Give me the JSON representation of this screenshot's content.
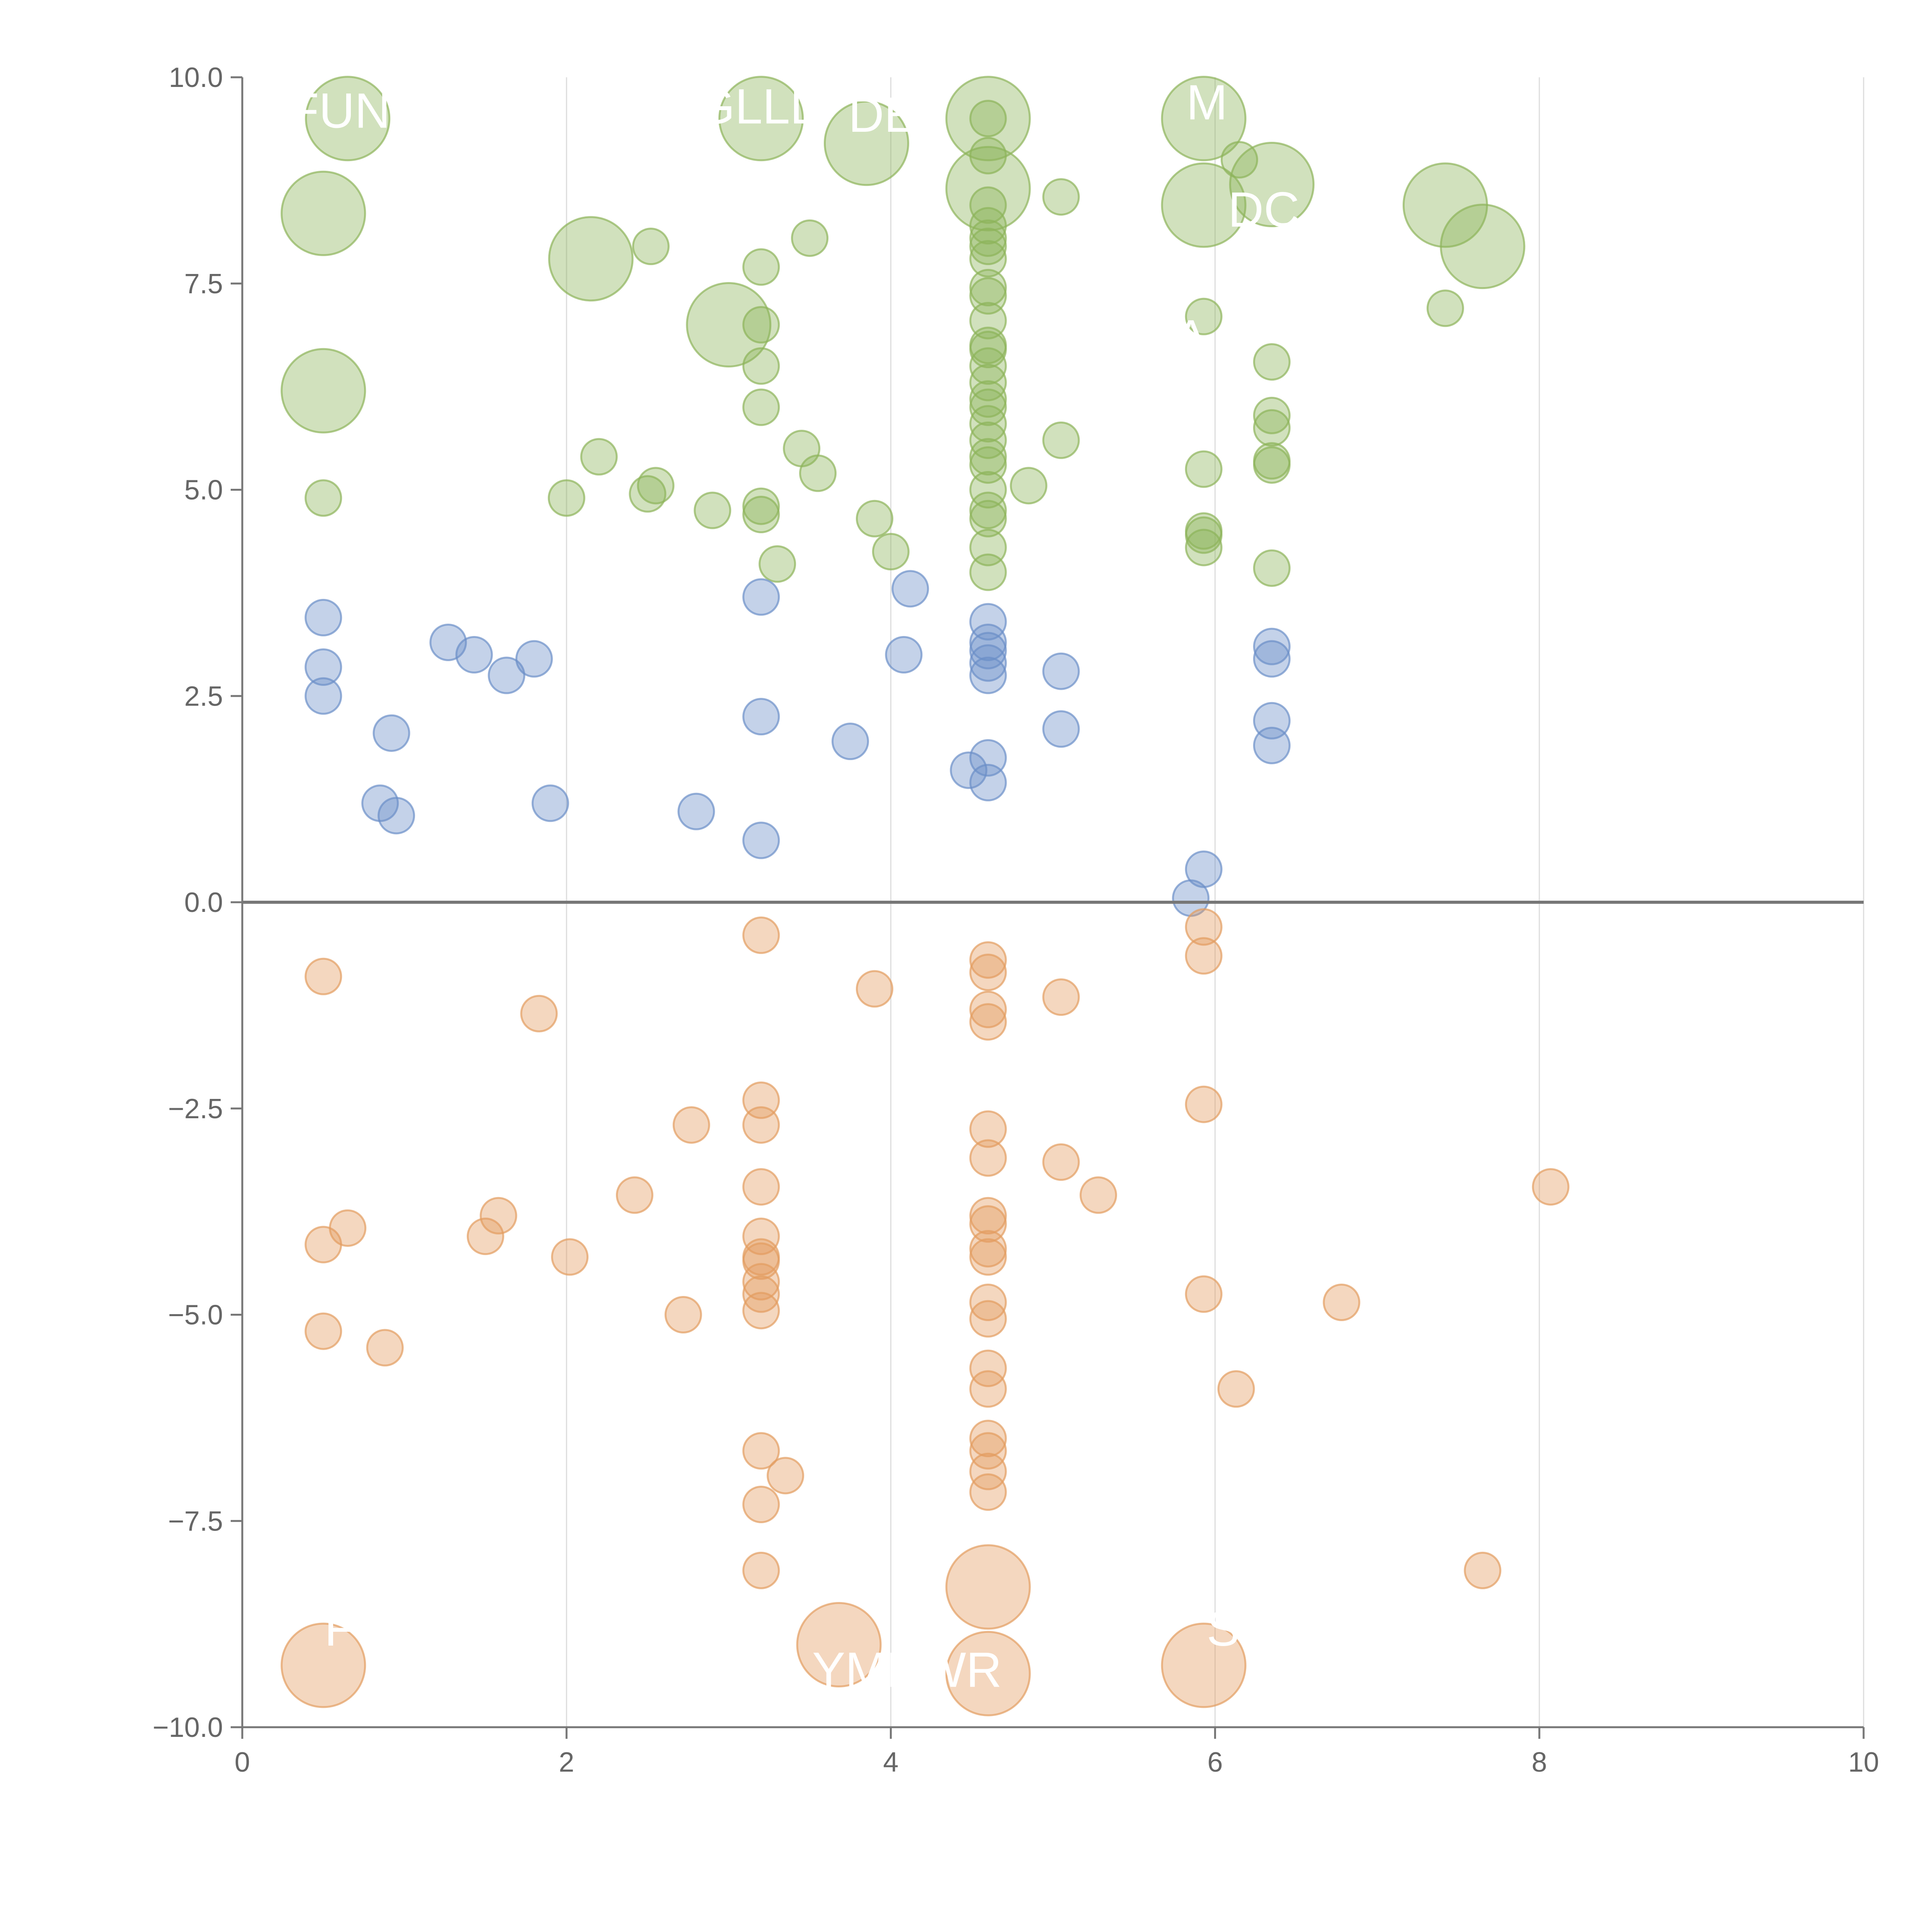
{
  "chart_data": {
    "type": "scatter",
    "title": "",
    "xlabel": "",
    "ylabel": "",
    "xlim": [
      0,
      10
    ],
    "ylim": [
      -10,
      10
    ],
    "x_ticks": [
      0,
      2,
      4,
      6,
      8,
      10
    ],
    "y_ticks": [
      -10,
      -7.5,
      -5,
      -2.5,
      0,
      2.5,
      5,
      7.5,
      10
    ],
    "x_tick_labels": [
      "0",
      "2",
      "4",
      "6",
      "8",
      "10"
    ],
    "y_tick_labels": [
      "−10.0",
      "−7.5",
      "−5.0",
      "−2.5",
      "0.0",
      "2.5",
      "5.0",
      "7.5",
      "10.0"
    ],
    "grid": "vertical",
    "zero_line": true,
    "legend": "none",
    "series": [
      {
        "name": "green",
        "color": "#8db45a",
        "points": [
          {
            "x": 0.5,
            "y": 4.9,
            "size": "small"
          },
          {
            "x": 0.5,
            "y": 6.2,
            "size": "large"
          },
          {
            "x": 0.5,
            "y": 8.35,
            "size": "large"
          },
          {
            "x": 0.65,
            "y": 9.5,
            "size": "large"
          },
          {
            "x": 2.0,
            "y": 4.9,
            "size": "small"
          },
          {
            "x": 2.15,
            "y": 7.8,
            "size": "large"
          },
          {
            "x": 2.2,
            "y": 5.4,
            "size": "small"
          },
          {
            "x": 2.5,
            "y": 4.95,
            "size": "small"
          },
          {
            "x": 2.52,
            "y": 7.95,
            "size": "small"
          },
          {
            "x": 2.55,
            "y": 5.05,
            "size": "small"
          },
          {
            "x": 2.9,
            "y": 4.75,
            "size": "small"
          },
          {
            "x": 3.0,
            "y": 7.0,
            "size": "large"
          },
          {
            "x": 3.2,
            "y": 4.7,
            "size": "small"
          },
          {
            "x": 3.2,
            "y": 4.8,
            "size": "small"
          },
          {
            "x": 3.2,
            "y": 6.0,
            "size": "small"
          },
          {
            "x": 3.2,
            "y": 6.5,
            "size": "small"
          },
          {
            "x": 3.2,
            "y": 7.0,
            "size": "small"
          },
          {
            "x": 3.2,
            "y": 7.7,
            "size": "small"
          },
          {
            "x": 3.2,
            "y": 9.5,
            "size": "large"
          },
          {
            "x": 3.3,
            "y": 4.1,
            "size": "small"
          },
          {
            "x": 3.45,
            "y": 5.5,
            "size": "small"
          },
          {
            "x": 3.5,
            "y": 8.05,
            "size": "small"
          },
          {
            "x": 3.55,
            "y": 5.2,
            "size": "small"
          },
          {
            "x": 3.85,
            "y": 9.2,
            "size": "large"
          },
          {
            "x": 3.9,
            "y": 4.65,
            "size": "small"
          },
          {
            "x": 4.0,
            "y": 4.25,
            "size": "small"
          },
          {
            "x": 4.6,
            "y": 4.0,
            "size": "small"
          },
          {
            "x": 4.6,
            "y": 4.3,
            "size": "small"
          },
          {
            "x": 4.6,
            "y": 4.65,
            "size": "small"
          },
          {
            "x": 4.6,
            "y": 4.75,
            "size": "small"
          },
          {
            "x": 4.6,
            "y": 5.0,
            "size": "small"
          },
          {
            "x": 4.6,
            "y": 5.3,
            "size": "small"
          },
          {
            "x": 4.6,
            "y": 5.4,
            "size": "small"
          },
          {
            "x": 4.6,
            "y": 5.6,
            "size": "small"
          },
          {
            "x": 4.6,
            "y": 5.8,
            "size": "small"
          },
          {
            "x": 4.6,
            "y": 6.0,
            "size": "small"
          },
          {
            "x": 4.6,
            "y": 6.1,
            "size": "small"
          },
          {
            "x": 4.6,
            "y": 6.3,
            "size": "small"
          },
          {
            "x": 4.6,
            "y": 6.5,
            "size": "small"
          },
          {
            "x": 4.6,
            "y": 6.7,
            "size": "small"
          },
          {
            "x": 4.6,
            "y": 6.75,
            "size": "small"
          },
          {
            "x": 4.6,
            "y": 7.05,
            "size": "small"
          },
          {
            "x": 4.6,
            "y": 7.35,
            "size": "small"
          },
          {
            "x": 4.6,
            "y": 7.45,
            "size": "small"
          },
          {
            "x": 4.6,
            "y": 7.8,
            "size": "small"
          },
          {
            "x": 4.6,
            "y": 7.95,
            "size": "small"
          },
          {
            "x": 4.6,
            "y": 8.05,
            "size": "small"
          },
          {
            "x": 4.6,
            "y": 8.2,
            "size": "small"
          },
          {
            "x": 4.6,
            "y": 8.45,
            "size": "small"
          },
          {
            "x": 4.6,
            "y": 8.65,
            "size": "large"
          },
          {
            "x": 4.6,
            "y": 9.05,
            "size": "small"
          },
          {
            "x": 4.6,
            "y": 9.5,
            "size": "small"
          },
          {
            "x": 4.6,
            "y": 9.5,
            "size": "large"
          },
          {
            "x": 4.85,
            "y": 5.05,
            "size": "small"
          },
          {
            "x": 5.05,
            "y": 5.6,
            "size": "small"
          },
          {
            "x": 5.05,
            "y": 8.55,
            "size": "small"
          },
          {
            "x": 5.93,
            "y": 4.3,
            "size": "small"
          },
          {
            "x": 5.93,
            "y": 4.45,
            "size": "small"
          },
          {
            "x": 5.93,
            "y": 4.5,
            "size": "small"
          },
          {
            "x": 5.93,
            "y": 5.25,
            "size": "small"
          },
          {
            "x": 5.93,
            "y": 7.1,
            "size": "small"
          },
          {
            "x": 5.93,
            "y": 8.45,
            "size": "large"
          },
          {
            "x": 5.93,
            "y": 9.5,
            "size": "large"
          },
          {
            "x": 6.15,
            "y": 9.0,
            "size": "small"
          },
          {
            "x": 6.35,
            "y": 4.05,
            "size": "small"
          },
          {
            "x": 6.35,
            "y": 5.3,
            "size": "small"
          },
          {
            "x": 6.35,
            "y": 5.35,
            "size": "small"
          },
          {
            "x": 6.35,
            "y": 5.75,
            "size": "small"
          },
          {
            "x": 6.35,
            "y": 5.9,
            "size": "small"
          },
          {
            "x": 6.35,
            "y": 6.55,
            "size": "small"
          },
          {
            "x": 6.35,
            "y": 8.7,
            "size": "large"
          },
          {
            "x": 7.42,
            "y": 7.2,
            "size": "small"
          },
          {
            "x": 7.42,
            "y": 8.45,
            "size": "large"
          },
          {
            "x": 7.65,
            "y": 7.95,
            "size": "large"
          }
        ]
      },
      {
        "name": "blue",
        "color": "#6b8fc8",
        "points": [
          {
            "x": 0.5,
            "y": 2.5,
            "size": "small"
          },
          {
            "x": 0.5,
            "y": 2.85,
            "size": "small"
          },
          {
            "x": 0.5,
            "y": 3.45,
            "size": "small"
          },
          {
            "x": 0.85,
            "y": 1.2,
            "size": "small"
          },
          {
            "x": 0.95,
            "y": 1.05,
            "size": "small"
          },
          {
            "x": 0.92,
            "y": 2.05,
            "size": "small"
          },
          {
            "x": 1.27,
            "y": 3.15,
            "size": "small"
          },
          {
            "x": 1.43,
            "y": 3.0,
            "size": "small"
          },
          {
            "x": 1.63,
            "y": 2.75,
            "size": "small"
          },
          {
            "x": 1.8,
            "y": 2.95,
            "size": "small"
          },
          {
            "x": 1.9,
            "y": 1.2,
            "size": "small"
          },
          {
            "x": 2.8,
            "y": 1.1,
            "size": "small"
          },
          {
            "x": 3.2,
            "y": 0.75,
            "size": "small"
          },
          {
            "x": 3.2,
            "y": 2.25,
            "size": "small"
          },
          {
            "x": 3.2,
            "y": 3.7,
            "size": "small"
          },
          {
            "x": 3.75,
            "y": 1.95,
            "size": "small"
          },
          {
            "x": 4.08,
            "y": 3.0,
            "size": "small"
          },
          {
            "x": 4.12,
            "y": 3.8,
            "size": "small"
          },
          {
            "x": 4.48,
            "y": 1.6,
            "size": "small"
          },
          {
            "x": 4.6,
            "y": 1.45,
            "size": "small"
          },
          {
            "x": 4.6,
            "y": 1.75,
            "size": "small"
          },
          {
            "x": 4.6,
            "y": 2.75,
            "size": "small"
          },
          {
            "x": 4.6,
            "y": 2.9,
            "size": "small"
          },
          {
            "x": 4.6,
            "y": 3.05,
            "size": "small"
          },
          {
            "x": 4.6,
            "y": 3.15,
            "size": "small"
          },
          {
            "x": 4.6,
            "y": 3.4,
            "size": "small"
          },
          {
            "x": 5.05,
            "y": 2.1,
            "size": "small"
          },
          {
            "x": 5.05,
            "y": 2.8,
            "size": "small"
          },
          {
            "x": 5.85,
            "y": 0.05,
            "size": "small"
          },
          {
            "x": 5.93,
            "y": 0.4,
            "size": "small"
          },
          {
            "x": 6.35,
            "y": 1.9,
            "size": "small"
          },
          {
            "x": 6.35,
            "y": 2.2,
            "size": "small"
          },
          {
            "x": 6.35,
            "y": 2.95,
            "size": "small"
          },
          {
            "x": 6.35,
            "y": 3.1,
            "size": "small"
          }
        ]
      },
      {
        "name": "orange",
        "color": "#e39c60",
        "points": [
          {
            "x": 0.5,
            "y": -0.9,
            "size": "small"
          },
          {
            "x": 0.5,
            "y": -4.15,
            "size": "small"
          },
          {
            "x": 0.5,
            "y": -5.2,
            "size": "small"
          },
          {
            "x": 0.5,
            "y": -9.25,
            "size": "large"
          },
          {
            "x": 0.65,
            "y": -3.95,
            "size": "small"
          },
          {
            "x": 0.88,
            "y": -5.4,
            "size": "small"
          },
          {
            "x": 1.5,
            "y": -4.05,
            "size": "small"
          },
          {
            "x": 1.58,
            "y": -3.8,
            "size": "small"
          },
          {
            "x": 1.83,
            "y": -1.35,
            "size": "small"
          },
          {
            "x": 2.02,
            "y": -4.3,
            "size": "small"
          },
          {
            "x": 2.42,
            "y": -3.55,
            "size": "small"
          },
          {
            "x": 2.72,
            "y": -5.0,
            "size": "small"
          },
          {
            "x": 2.77,
            "y": -2.7,
            "size": "small"
          },
          {
            "x": 3.2,
            "y": -0.4,
            "size": "small"
          },
          {
            "x": 3.2,
            "y": -2.4,
            "size": "small"
          },
          {
            "x": 3.2,
            "y": -2.7,
            "size": "small"
          },
          {
            "x": 3.2,
            "y": -3.45,
            "size": "small"
          },
          {
            "x": 3.2,
            "y": -4.05,
            "size": "small"
          },
          {
            "x": 3.2,
            "y": -4.3,
            "size": "small"
          },
          {
            "x": 3.2,
            "y": -4.35,
            "size": "small"
          },
          {
            "x": 3.2,
            "y": -4.6,
            "size": "small"
          },
          {
            "x": 3.2,
            "y": -4.75,
            "size": "small"
          },
          {
            "x": 3.2,
            "y": -4.95,
            "size": "small"
          },
          {
            "x": 3.2,
            "y": -6.65,
            "size": "small"
          },
          {
            "x": 3.2,
            "y": -7.3,
            "size": "small"
          },
          {
            "x": 3.2,
            "y": -8.1,
            "size": "small"
          },
          {
            "x": 3.35,
            "y": -6.95,
            "size": "small"
          },
          {
            "x": 3.68,
            "y": -9.0,
            "size": "large"
          },
          {
            "x": 3.9,
            "y": -1.05,
            "size": "small"
          },
          {
            "x": 4.6,
            "y": -0.7,
            "size": "small"
          },
          {
            "x": 4.6,
            "y": -0.85,
            "size": "small"
          },
          {
            "x": 4.6,
            "y": -1.3,
            "size": "small"
          },
          {
            "x": 4.6,
            "y": -1.45,
            "size": "small"
          },
          {
            "x": 4.6,
            "y": -2.75,
            "size": "small"
          },
          {
            "x": 4.6,
            "y": -3.1,
            "size": "small"
          },
          {
            "x": 4.6,
            "y": -3.8,
            "size": "small"
          },
          {
            "x": 4.6,
            "y": -3.9,
            "size": "small"
          },
          {
            "x": 4.6,
            "y": -4.2,
            "size": "small"
          },
          {
            "x": 4.6,
            "y": -4.3,
            "size": "small"
          },
          {
            "x": 4.6,
            "y": -4.85,
            "size": "small"
          },
          {
            "x": 4.6,
            "y": -5.05,
            "size": "small"
          },
          {
            "x": 4.6,
            "y": -5.65,
            "size": "small"
          },
          {
            "x": 4.6,
            "y": -5.9,
            "size": "small"
          },
          {
            "x": 4.6,
            "y": -6.5,
            "size": "small"
          },
          {
            "x": 4.6,
            "y": -6.65,
            "size": "small"
          },
          {
            "x": 4.6,
            "y": -6.9,
            "size": "small"
          },
          {
            "x": 4.6,
            "y": -7.15,
            "size": "small"
          },
          {
            "x": 4.6,
            "y": -8.3,
            "size": "large"
          },
          {
            "x": 4.6,
            "y": -9.35,
            "size": "large"
          },
          {
            "x": 5.05,
            "y": -1.15,
            "size": "small"
          },
          {
            "x": 5.05,
            "y": -3.15,
            "size": "small"
          },
          {
            "x": 5.28,
            "y": -3.55,
            "size": "small"
          },
          {
            "x": 5.93,
            "y": -0.3,
            "size": "small"
          },
          {
            "x": 5.93,
            "y": -0.65,
            "size": "small"
          },
          {
            "x": 5.93,
            "y": -2.45,
            "size": "small"
          },
          {
            "x": 5.93,
            "y": -4.75,
            "size": "small"
          },
          {
            "x": 5.93,
            "y": -9.25,
            "size": "large"
          },
          {
            "x": 6.13,
            "y": -5.9,
            "size": "small"
          },
          {
            "x": 6.78,
            "y": -4.85,
            "size": "small"
          },
          {
            "x": 7.65,
            "y": -8.1,
            "size": "small"
          },
          {
            "x": 8.07,
            "y": -3.45,
            "size": "small"
          }
        ]
      }
    ],
    "annotations": [
      {
        "text": "FUN",
        "x": 0.6,
        "y": 9.6
      },
      {
        "text": "GLLD",
        "x": 3.2,
        "y": 9.65
      },
      {
        "text": "DE",
        "x": 3.95,
        "y": 9.55
      },
      {
        "text": "M",
        "x": 5.95,
        "y": 9.7
      },
      {
        "text": "DC",
        "x": 6.3,
        "y": 8.4
      },
      {
        "text": "A",
        "x": 5.85,
        "y": 6.85
      },
      {
        "text": "YMEWR",
        "x": 4.1,
        "y": -9.3
      },
      {
        "text": "F",
        "x": 0.6,
        "y": -8.8
      },
      {
        "text": "S",
        "x": 6.05,
        "y": -8.8
      }
    ]
  }
}
